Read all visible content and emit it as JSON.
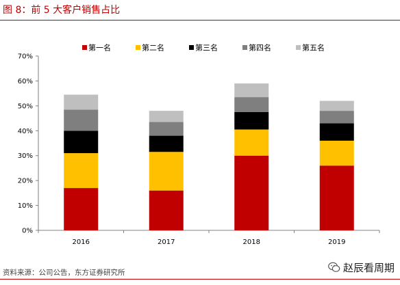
{
  "figure": {
    "title": "图 8：前 5 大客户销售占比",
    "source": "资料来源：公司公告，东方证券研究所",
    "watermark_text": "赵辰看周期",
    "watermark_icon": "wechat-icon"
  },
  "chart_data": {
    "type": "bar",
    "stacked": true,
    "title": "",
    "xlabel": "",
    "ylabel": "",
    "categories": [
      "2016",
      "2017",
      "2018",
      "2019"
    ],
    "ylim": [
      0,
      70
    ],
    "yticks": [
      0,
      10,
      20,
      30,
      40,
      50,
      60,
      70
    ],
    "ytick_labels": [
      "0%",
      "10%",
      "20%",
      "30%",
      "40%",
      "50%",
      "60%",
      "70%"
    ],
    "grid": false,
    "legend_position": "top",
    "series": [
      {
        "name": "第一名",
        "color": "#c00000",
        "values": [
          17,
          16,
          30,
          26
        ]
      },
      {
        "name": "第二名",
        "color": "#ffc000",
        "values": [
          14,
          15.5,
          10.5,
          10
        ]
      },
      {
        "name": "第三名",
        "color": "#000000",
        "values": [
          9,
          6.5,
          7,
          7
        ]
      },
      {
        "name": "第四名",
        "color": "#7f7f7f",
        "values": [
          8.5,
          5.5,
          6,
          5
        ]
      },
      {
        "name": "第五名",
        "color": "#bfbfbf",
        "values": [
          6,
          4.5,
          5.5,
          4
        ]
      }
    ]
  }
}
